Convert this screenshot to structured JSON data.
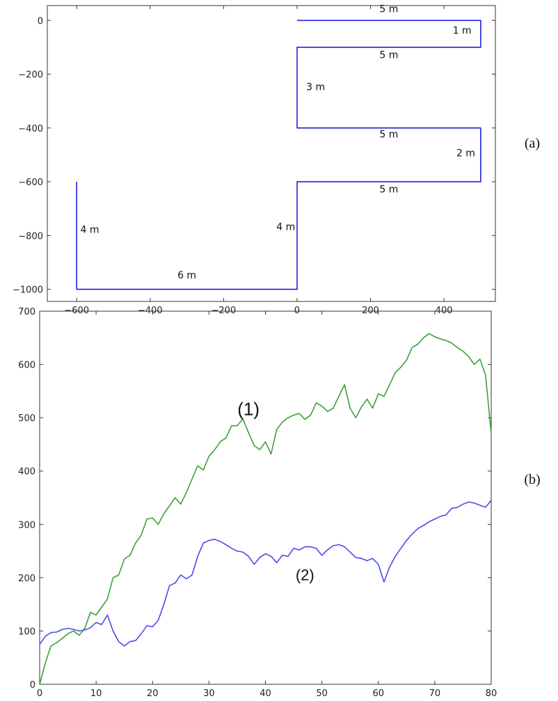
{
  "chart_data": [
    {
      "type": "line",
      "panel_label": "(a)",
      "xlim": [
        -680,
        540
      ],
      "ylim": [
        -1045,
        55
      ],
      "xticks": [
        -600,
        -400,
        -200,
        0,
        200,
        400
      ],
      "yticks": [
        0,
        -200,
        -400,
        -600,
        -800,
        -1000
      ],
      "series": [
        {
          "color": "#1f1fdb",
          "points": [
            [
              0,
              0
            ],
            [
              500,
              0
            ],
            [
              500,
              -100
            ],
            [
              0,
              -100
            ],
            [
              0,
              -400
            ],
            [
              500,
              -400
            ],
            [
              500,
              -600
            ],
            [
              0,
              -600
            ],
            [
              0,
              -1000
            ],
            [
              -600,
              -1000
            ],
            [
              -600,
              -600
            ]
          ]
        }
      ],
      "segment_labels": [
        {
          "text": "5 m",
          "x": 250,
          "y": 30,
          "anchor": "middle"
        },
        {
          "text": "1 m",
          "x": 475,
          "y": -50,
          "anchor": "end"
        },
        {
          "text": "5 m",
          "x": 250,
          "y": -140,
          "anchor": "middle"
        },
        {
          "text": "3 m",
          "x": 25,
          "y": -260,
          "anchor": "start"
        },
        {
          "text": "5 m",
          "x": 250,
          "y": -435,
          "anchor": "middle"
        },
        {
          "text": "2 m",
          "x": 485,
          "y": -505,
          "anchor": "end"
        },
        {
          "text": "5 m",
          "x": 250,
          "y": -640,
          "anchor": "middle"
        },
        {
          "text": "4 m",
          "x": -5,
          "y": -780,
          "anchor": "end"
        },
        {
          "text": "6 m",
          "x": -300,
          "y": -960,
          "anchor": "middle"
        },
        {
          "text": "4 m",
          "x": -590,
          "y": -790,
          "anchor": "start"
        }
      ]
    },
    {
      "type": "line",
      "panel_label": "(b)",
      "xlim": [
        0,
        80
      ],
      "ylim": [
        0,
        700
      ],
      "xticks": [
        0,
        10,
        20,
        30,
        40,
        50,
        60,
        70,
        80
      ],
      "yticks": [
        0,
        100,
        200,
        300,
        400,
        500,
        600,
        700
      ],
      "series": [
        {
          "label": "(1)",
          "color": "#3aa13a",
          "points": [
            [
              0,
              0
            ],
            [
              1,
              40
            ],
            [
              2,
              72
            ],
            [
              3,
              78
            ],
            [
              4,
              86
            ],
            [
              5,
              95
            ],
            [
              6,
              100
            ],
            [
              7,
              92
            ],
            [
              8,
              105
            ],
            [
              9,
              135
            ],
            [
              10,
              130
            ],
            [
              11,
              145
            ],
            [
              12,
              160
            ],
            [
              13,
              200
            ],
            [
              14,
              205
            ],
            [
              15,
              235
            ],
            [
              16,
              242
            ],
            [
              17,
              265
            ],
            [
              18,
              280
            ],
            [
              19,
              310
            ],
            [
              20,
              312
            ],
            [
              21,
              300
            ],
            [
              22,
              320
            ],
            [
              23,
              335
            ],
            [
              24,
              350
            ],
            [
              25,
              338
            ],
            [
              26,
              360
            ],
            [
              27,
              385
            ],
            [
              28,
              410
            ],
            [
              29,
              402
            ],
            [
              30,
              428
            ],
            [
              31,
              440
            ],
            [
              32,
              455
            ],
            [
              33,
              462
            ],
            [
              34,
              485
            ],
            [
              35,
              485
            ],
            [
              36,
              498
            ],
            [
              37,
              472
            ],
            [
              38,
              448
            ],
            [
              39,
              440
            ],
            [
              40,
              455
            ],
            [
              41,
              432
            ],
            [
              42,
              478
            ],
            [
              43,
              492
            ],
            [
              44,
              500
            ],
            [
              45,
              505
            ],
            [
              46,
              508
            ],
            [
              47,
              497
            ],
            [
              48,
              505
            ],
            [
              49,
              528
            ],
            [
              50,
              522
            ],
            [
              51,
              512
            ],
            [
              52,
              518
            ],
            [
              53,
              540
            ],
            [
              54,
              562
            ],
            [
              55,
              518
            ],
            [
              56,
              500
            ],
            [
              57,
              520
            ],
            [
              58,
              535
            ],
            [
              59,
              518
            ],
            [
              60,
              545
            ],
            [
              61,
              540
            ],
            [
              62,
              562
            ],
            [
              63,
              585
            ],
            [
              64,
              595
            ],
            [
              65,
              608
            ],
            [
              66,
              632
            ],
            [
              67,
              638
            ],
            [
              68,
              650
            ],
            [
              69,
              658
            ],
            [
              70,
              652
            ],
            [
              71,
              648
            ],
            [
              72,
              645
            ],
            [
              73,
              640
            ],
            [
              74,
              632
            ],
            [
              75,
              625
            ],
            [
              76,
              615
            ],
            [
              77,
              600
            ],
            [
              78,
              610
            ],
            [
              79,
              580
            ],
            [
              80,
              470
            ]
          ]
        },
        {
          "label": "(2)",
          "color": "#4a4aef",
          "points": [
            [
              0,
              75
            ],
            [
              1,
              90
            ],
            [
              2,
              97
            ],
            [
              3,
              98
            ],
            [
              4,
              103
            ],
            [
              5,
              105
            ],
            [
              6,
              103
            ],
            [
              7,
              100
            ],
            [
              8,
              102
            ],
            [
              9,
              106
            ],
            [
              10,
              116
            ],
            [
              11,
              112
            ],
            [
              12,
              130
            ],
            [
              13,
              100
            ],
            [
              14,
              80
            ],
            [
              15,
              72
            ],
            [
              16,
              80
            ],
            [
              17,
              82
            ],
            [
              18,
              95
            ],
            [
              19,
              110
            ],
            [
              20,
              108
            ],
            [
              21,
              120
            ],
            [
              22,
              150
            ],
            [
              23,
              185
            ],
            [
              24,
              190
            ],
            [
              25,
              205
            ],
            [
              26,
              198
            ],
            [
              27,
              205
            ],
            [
              28,
              240
            ],
            [
              29,
              265
            ],
            [
              30,
              270
            ],
            [
              31,
              272
            ],
            [
              32,
              268
            ],
            [
              33,
              262
            ],
            [
              34,
              255
            ],
            [
              35,
              250
            ],
            [
              36,
              248
            ],
            [
              37,
              240
            ],
            [
              38,
              225
            ],
            [
              39,
              238
            ],
            [
              40,
              245
            ],
            [
              41,
              240
            ],
            [
              42,
              228
            ],
            [
              43,
              242
            ],
            [
              44,
              240
            ],
            [
              45,
              255
            ],
            [
              46,
              252
            ],
            [
              47,
              258
            ],
            [
              48,
              258
            ],
            [
              49,
              255
            ],
            [
              50,
              242
            ],
            [
              51,
              252
            ],
            [
              52,
              260
            ],
            [
              53,
              262
            ],
            [
              54,
              258
            ],
            [
              55,
              248
            ],
            [
              56,
              238
            ],
            [
              57,
              236
            ],
            [
              58,
              232
            ],
            [
              59,
              236
            ],
            [
              60,
              225
            ],
            [
              61,
              192
            ],
            [
              62,
              220
            ],
            [
              63,
              240
            ],
            [
              64,
              255
            ],
            [
              65,
              270
            ],
            [
              66,
              282
            ],
            [
              67,
              292
            ],
            [
              68,
              298
            ],
            [
              69,
              305
            ],
            [
              70,
              310
            ],
            [
              71,
              315
            ],
            [
              72,
              318
            ],
            [
              73,
              330
            ],
            [
              74,
              332
            ],
            [
              75,
              338
            ],
            [
              76,
              342
            ],
            [
              77,
              340
            ],
            [
              78,
              336
            ],
            [
              79,
              332
            ],
            [
              80,
              345
            ]
          ]
        }
      ],
      "annotations": [
        {
          "text": "(1)",
          "x": 37,
          "y": 505
        },
        {
          "text": "(2)",
          "x": 47,
          "y": 195
        }
      ]
    }
  ]
}
